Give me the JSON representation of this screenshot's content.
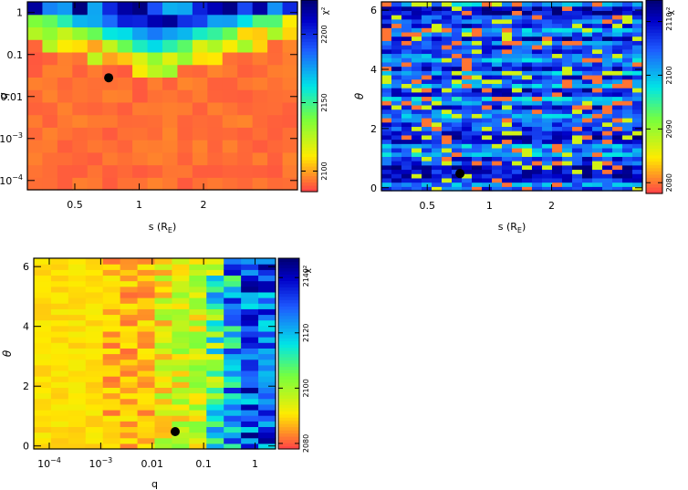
{
  "chart_data": [
    {
      "id": "panel-a",
      "type": "heatmap",
      "xlabel": "s (R",
      "xlabel_sub": "E",
      "xlabel_close": ")",
      "ylabel": "q",
      "xscale": "log",
      "xlim": [
        0.3,
        5.5
      ],
      "yscale": "log",
      "ylim": [
        6e-05,
        1.8
      ],
      "xticks": [
        {
          "v": 0.5,
          "label": "0.5"
        },
        {
          "v": 1,
          "label": "1"
        },
        {
          "v": 2,
          "label": "2"
        }
      ],
      "yticks": [
        {
          "v": 1,
          "label": "1"
        },
        {
          "v": 0.1,
          "label": "0.1"
        },
        {
          "v": 0.01,
          "label": "0.01"
        },
        {
          "v": 0.001,
          "label": "10",
          "sup": "−3"
        },
        {
          "v": 0.0001,
          "label": "10",
          "sup": "−4"
        }
      ],
      "grid": {
        "nx": 18,
        "ny": 15
      },
      "marker": {
        "x": 0.72,
        "y": 0.028
      },
      "colorbar": {
        "ticks": [
          {
            "v": 2100,
            "label": "2100"
          },
          {
            "v": 2150,
            "label": "2150"
          },
          {
            "v": 2200,
            "label": "2200"
          }
        ],
        "range": [
          2085,
          2225
        ],
        "label": "χ²"
      }
    },
    {
      "id": "panel-b",
      "type": "heatmap",
      "xlabel": "s (R",
      "xlabel_sub": "E",
      "xlabel_close": ")",
      "ylabel": "θ",
      "xscale": "log",
      "xlim": [
        0.3,
        5.5
      ],
      "yscale": "linear",
      "ylim": [
        -0.1,
        6.28
      ],
      "xticks": [
        {
          "v": 0.5,
          "label": "0.5"
        },
        {
          "v": 1,
          "label": "1"
        },
        {
          "v": 2,
          "label": "2"
        }
      ],
      "yticks": [
        {
          "v": 0,
          "label": "0"
        },
        {
          "v": 2,
          "label": "2"
        },
        {
          "v": 4,
          "label": "4"
        },
        {
          "v": 6,
          "label": "6"
        }
      ],
      "grid": {
        "nx": 26,
        "ny": 44
      },
      "marker": {
        "x": 0.72,
        "y": 0.48
      },
      "colorbar": {
        "ticks": [
          {
            "v": 2080,
            "label": "2080"
          },
          {
            "v": 2090,
            "label": "2090"
          },
          {
            "v": 2100,
            "label": "2100"
          },
          {
            "v": 2110,
            "label": "2110"
          }
        ],
        "range": [
          2078,
          2114
        ],
        "label": "χ²"
      }
    },
    {
      "id": "panel-c",
      "type": "heatmap",
      "xlabel": "q",
      "xlabel_sub": "",
      "xlabel_close": "",
      "ylabel": "θ",
      "xscale": "log",
      "xlim": [
        5e-05,
        2.5
      ],
      "yscale": "linear",
      "ylim": [
        -0.1,
        6.28
      ],
      "xticks": [
        {
          "v": 0.0001,
          "label": "10",
          "sup": "−4"
        },
        {
          "v": 0.001,
          "label": "10",
          "sup": "−3"
        },
        {
          "v": 0.01,
          "label": "0.01"
        },
        {
          "v": 0.1,
          "label": "0.1"
        },
        {
          "v": 1,
          "label": "1"
        }
      ],
      "yticks": [
        {
          "v": 0,
          "label": "0"
        },
        {
          "v": 2,
          "label": "2"
        },
        {
          "v": 4,
          "label": "4"
        },
        {
          "v": 6,
          "label": "6"
        }
      ],
      "grid": {
        "nx": 14,
        "ny": 34
      },
      "marker": {
        "x": 0.028,
        "y": 0.48
      },
      "colorbar": {
        "ticks": [
          {
            "v": 2080,
            "label": "2080"
          },
          {
            "v": 2100,
            "label": "2100"
          },
          {
            "v": 2120,
            "label": "2120"
          },
          {
            "v": 2140,
            "label": "2140"
          }
        ],
        "range": [
          2078,
          2147
        ],
        "label": "χ²"
      }
    }
  ]
}
